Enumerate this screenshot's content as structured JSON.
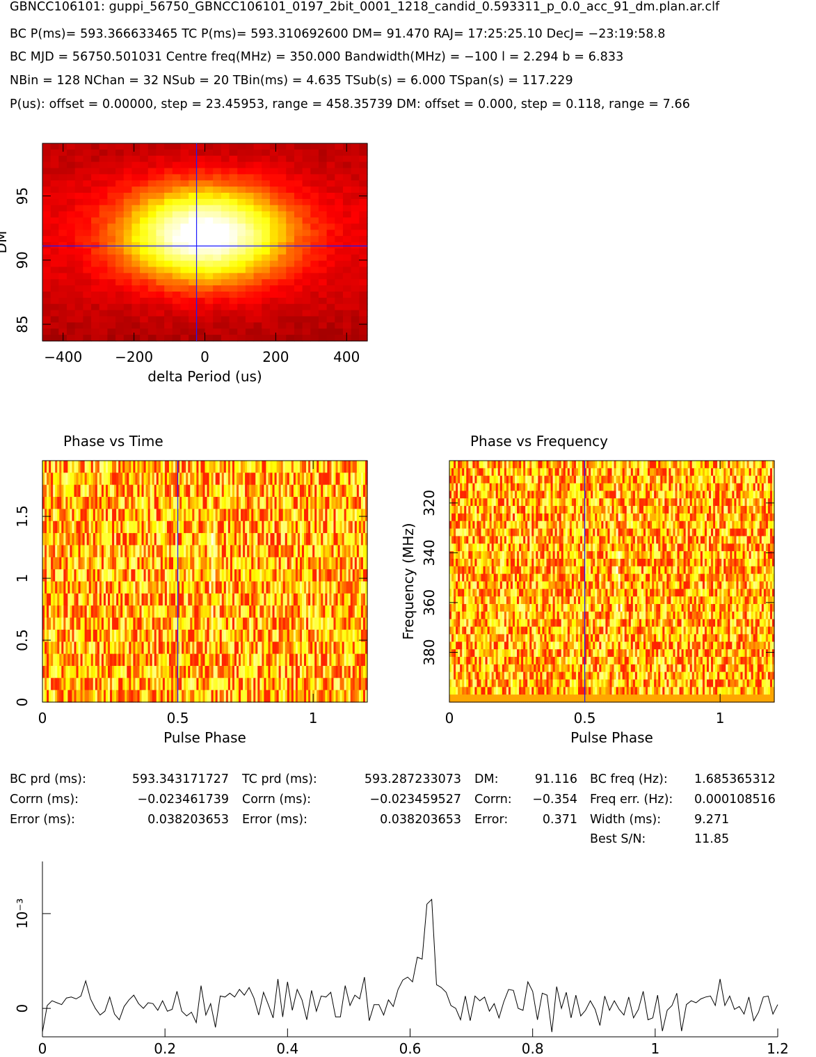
{
  "header": {
    "title": "GBNCC106101: guppi_56750_GBNCC106101_0197_2bit_0001_1218_candid_0.593311_p_0.0_acc_91_dm.plan.ar.clf",
    "line1": "BC P(ms)= 593.366633465 TC P(ms)= 593.310692600 DM= 91.470 RAJ= 17:25:25.10 DecJ= −23:19:58.8",
    "line2": "BC MJD = 56750.501031 Centre freq(MHz) = 350.000 Bandwidth(MHz) = −100 l = 2.294 b = 6.833",
    "line3": "NBin = 128 NChan = 32 NSub = 20 TBin(ms) = 4.635 TSub(s) = 6.000 TSpan(s) = 117.229",
    "line4": "P(us): offset = 0.00000, step = 23.45953, range = 458.35739 DM: offset = 0.000, step = 0.118, range = 7.66"
  },
  "params": {
    "col1_labels": [
      "BC prd (ms):",
      "Corrn (ms):",
      "Error (ms):"
    ],
    "col1_values": [
      "593.343171727",
      "−0.023461739",
      "0.038203653"
    ],
    "col2_labels": [
      "TC prd (ms):",
      "Corrn (ms):",
      "Error (ms):"
    ],
    "col2_values": [
      "593.287233073",
      "−0.023459527",
      "0.038203653"
    ],
    "col3_labels": [
      "DM:",
      "Corrn:",
      "Error:"
    ],
    "col3_values": [
      "91.116",
      "−0.354",
      "0.371"
    ],
    "col4_labels": [
      "BC freq (Hz):",
      "Freq err. (Hz):",
      "Width (ms):",
      "Best S/N:"
    ],
    "col4_values": [
      "1.685365312",
      "0.000108516",
      "9.271",
      "11.85"
    ]
  },
  "chart_data": [
    {
      "type": "heatmap",
      "panel": "dm-period",
      "xlabel": "delta Period (us)",
      "ylabel": "DM",
      "xlim": [
        -458.36,
        458.36
      ],
      "ylim": [
        83.7,
        99.1
      ],
      "xticks": [
        -400,
        -200,
        0,
        200,
        400
      ],
      "xtick_labels": [
        "−400",
        "−200",
        "0",
        "200",
        "400"
      ],
      "yticks": [
        85,
        90,
        95
      ],
      "ytick_labels": [
        "85",
        "90",
        "95"
      ],
      "best": {
        "x": -23.46,
        "y": 91.1
      },
      "peak": {
        "x": 0,
        "y": 92.0
      },
      "colormap": "heat"
    },
    {
      "type": "heatmap",
      "panel": "phase-time",
      "title": "Phase vs Time",
      "xlabel": "Pulse Phase",
      "ylabel": "",
      "xlim": [
        0,
        1.2
      ],
      "ylim": [
        0,
        1.95
      ],
      "xticks": [
        0,
        0.5,
        1
      ],
      "xtick_labels": [
        "0",
        "0.5",
        "1"
      ],
      "yticks": [
        0,
        0.5,
        1,
        1.5
      ],
      "ytick_labels": [
        "0",
        "0.5",
        "1",
        "1.5"
      ],
      "best_phase": 0.5,
      "nsub": 20,
      "nbin": 154
    },
    {
      "type": "heatmap",
      "panel": "phase-frequency",
      "title": "Phase vs Frequency",
      "xlabel": "Pulse Phase",
      "ylabel": "Frequency (MHz)",
      "xlim": [
        0,
        1.2
      ],
      "ylim": [
        400,
        303
      ],
      "xticks": [
        0,
        0.5,
        1
      ],
      "xtick_labels": [
        "0",
        "0.5",
        "1"
      ],
      "yticks": [
        320,
        340,
        360,
        380
      ],
      "ytick_labels": [
        "320",
        "340",
        "360",
        "380"
      ],
      "best_phase": 0.5,
      "nchan": 32,
      "nbin": 154
    },
    {
      "type": "line",
      "panel": "profile",
      "xlabel": "",
      "ylabel": "10⁻³",
      "xlim": [
        0,
        1.2
      ],
      "ylim": [
        -0.0003,
        0.00155
      ],
      "xticks": [
        0,
        0.2,
        0.4,
        0.6,
        0.8,
        1,
        1.2
      ],
      "xtick_labels": [
        "0",
        "0.2",
        "0.4",
        "0.6",
        "0.8",
        "1",
        "1.2"
      ],
      "yticks": [
        0,
        0.001
      ],
      "ytick_labels": [
        "0",
        "10⁻³"
      ],
      "values": [
        -0.00025,
        3e-05,
        8e-05,
        6e-05,
        4e-05,
        0.00011,
        0.00012,
        0.0001,
        0.00013,
        0.00029,
        0.0001,
        0.0,
        -7e-05,
        -3e-05,
        0.00012,
        -6e-05,
        -0.00012,
        2e-05,
        9e-05,
        0.00014,
        5e-05,
        0.0,
        6e-05,
        5e-05,
        -2e-05,
        8e-05,
        -3e-05,
        -1e-05,
        0.00018,
        -3e-05,
        -8e-05,
        -4e-05,
        -0.00015,
        0.00024,
        -7e-05,
        5e-05,
        -0.0002,
        0.00013,
        0.00012,
        0.00016,
        0.00012,
        0.0002,
        0.00014,
        0.00022,
        0.00011,
        -7e-05,
        0.00017,
        4e-05,
        -0.0001,
        0.00031,
        -9e-05,
        0.00028,
        -2e-05,
        0.0002,
        9e-05,
        -0.00012,
        0.00019,
        -3e-05,
        0.00013,
        0.00012,
        0.00017,
        -9e-05,
        -9e-05,
        0.00024,
        3e-05,
        0.00014,
        0.0001,
        0.00033,
        -0.00013,
        4e-05,
        4e-05,
        -7e-05,
        9e-05,
        2e-05,
        0.0002,
        0.0003,
        0.00033,
        0.00028,
        0.00054,
        0.00052,
        0.0011,
        0.00115,
        0.00025,
        0.00022,
        0.00017,
        3e-05,
        0.0,
        -0.00012,
        0.00013,
        -0.00013,
        0.00013,
        8e-05,
        0.00012,
        -3e-05,
        5e-05,
        -0.0001,
        7e-05,
        0.0002,
        0.00019,
        0.0,
        -2e-05,
        0.00028,
        0.00018,
        -0.00012,
        0.00016,
        0.00014,
        -0.00025,
        0.00023,
        0.0,
        0.00017,
        -0.0001,
        0.00014,
        -8e-05,
        -2e-05,
        8e-05,
        -1e-05,
        -0.00018,
        0.00013,
        -2e-05,
        8e-05,
        -1e-05,
        -7e-05,
        0.00012,
        -0.0001,
        -1e-05,
        0.00018,
        -0.00012,
        -0.0001,
        0.00014,
        -0.00024,
        -2e-05,
        3e-05,
        0.00016,
        -0.00024,
        4e-05,
        8e-05,
        6e-05,
        0.0001,
        0.00012,
        0.00013,
        3e-05,
        0.00031,
        3e-05,
        0.00013,
        -1e-05,
        2e-05,
        -6e-05,
        0.00012,
        -0.00013,
        -4e-05,
        0.00012,
        0.00013,
        -6e-05,
        4e-05
      ]
    }
  ]
}
